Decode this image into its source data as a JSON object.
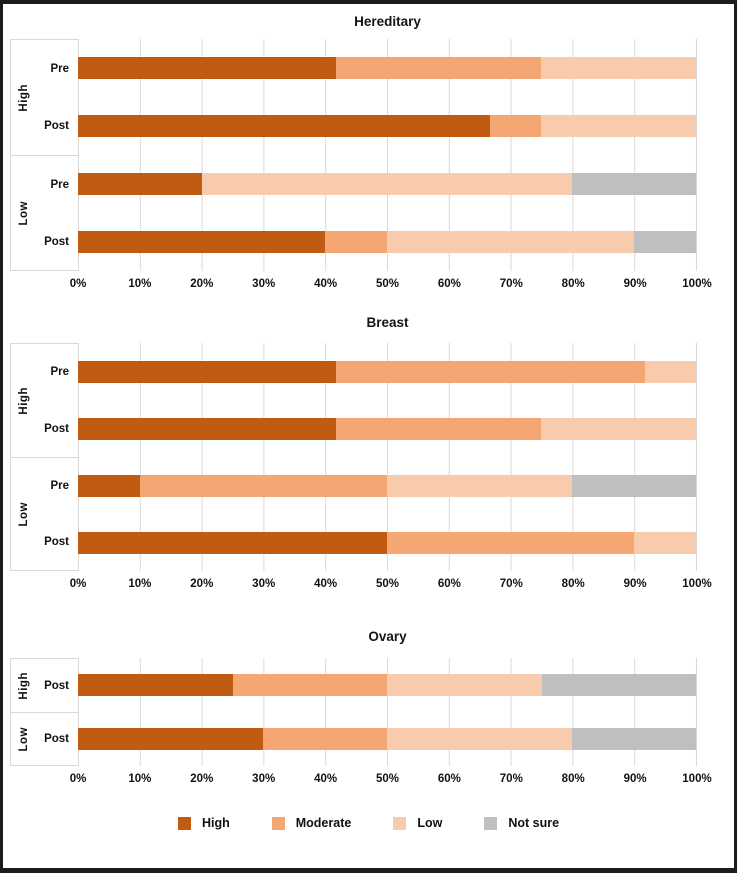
{
  "figure": {
    "background": "#ffffff",
    "border_color": "#1c1c1c",
    "gridline_color": "#d9d9d9",
    "axis_box_color": "#d9d9d9",
    "text_color": "#111111"
  },
  "legend": {
    "position": "bottom-center",
    "items": [
      {
        "label": "High",
        "color": "#c25b12"
      },
      {
        "label": "Moderate",
        "color": "#f4a772"
      },
      {
        "label": "Low",
        "color": "#f8cbad"
      },
      {
        "label": "Not sure",
        "color": "#bfbfbf"
      }
    ]
  },
  "chart_data": [
    {
      "type": "bar",
      "stacked": true,
      "orientation": "horizontal",
      "title": "Hereditary",
      "series_names": [
        "High",
        "Moderate",
        "Low",
        "Not sure"
      ],
      "series_colors": [
        "#c25b12",
        "#f4a772",
        "#f8cbad",
        "#bfbfbf"
      ],
      "x_tick_labels": [
        "0%",
        "10%",
        "20%",
        "30%",
        "40%",
        "50%",
        "60%",
        "70%",
        "80%",
        "90%",
        "100%"
      ],
      "xlim": [
        0,
        100
      ],
      "grid": true,
      "groups": [
        {
          "label": "High",
          "rows": [
            {
              "label": "Pre",
              "values": [
                41.7,
                33.3,
                25,
                0
              ]
            },
            {
              "label": "Post",
              "values": [
                66.7,
                8.3,
                25,
                0
              ]
            }
          ]
        },
        {
          "label": "Low",
          "rows": [
            {
              "label": "Pre",
              "values": [
                20,
                0,
                60,
                20
              ]
            },
            {
              "label": "Post",
              "values": [
                40,
                10,
                40,
                10
              ]
            }
          ]
        }
      ]
    },
    {
      "type": "bar",
      "stacked": true,
      "orientation": "horizontal",
      "title": "Breast",
      "series_names": [
        "High",
        "Moderate",
        "Low",
        "Not sure"
      ],
      "series_colors": [
        "#c25b12",
        "#f4a772",
        "#f8cbad",
        "#bfbfbf"
      ],
      "x_tick_labels": [
        "0%",
        "10%",
        "20%",
        "30%",
        "40%",
        "50%",
        "60%",
        "70%",
        "80%",
        "90%",
        "100%"
      ],
      "xlim": [
        0,
        100
      ],
      "grid": true,
      "groups": [
        {
          "label": "High",
          "rows": [
            {
              "label": "Pre",
              "values": [
                41.7,
                50,
                8.3,
                0
              ]
            },
            {
              "label": "Post",
              "values": [
                41.7,
                33.3,
                25,
                0
              ]
            }
          ]
        },
        {
          "label": "Low",
          "rows": [
            {
              "label": "Pre",
              "values": [
                10,
                40,
                30,
                20
              ]
            },
            {
              "label": "Post",
              "values": [
                50,
                40,
                10,
                0
              ]
            }
          ]
        }
      ]
    },
    {
      "type": "bar",
      "stacked": true,
      "orientation": "horizontal",
      "title": "Ovary",
      "series_names": [
        "High",
        "Moderate",
        "Low",
        "Not sure"
      ],
      "series_colors": [
        "#c25b12",
        "#f4a772",
        "#f8cbad",
        "#bfbfbf"
      ],
      "x_tick_labels": [
        "0%",
        "10%",
        "20%",
        "30%",
        "40%",
        "50%",
        "60%",
        "70%",
        "80%",
        "90%",
        "100%"
      ],
      "xlim": [
        0,
        100
      ],
      "grid": true,
      "groups": [
        {
          "label": "High",
          "rows": [
            {
              "label": "Post",
              "values": [
                25,
                25,
                25,
                25
              ]
            }
          ]
        },
        {
          "label": "Low",
          "rows": [
            {
              "label": "Post",
              "values": [
                30,
                20,
                30,
                20
              ]
            }
          ]
        }
      ]
    }
  ]
}
